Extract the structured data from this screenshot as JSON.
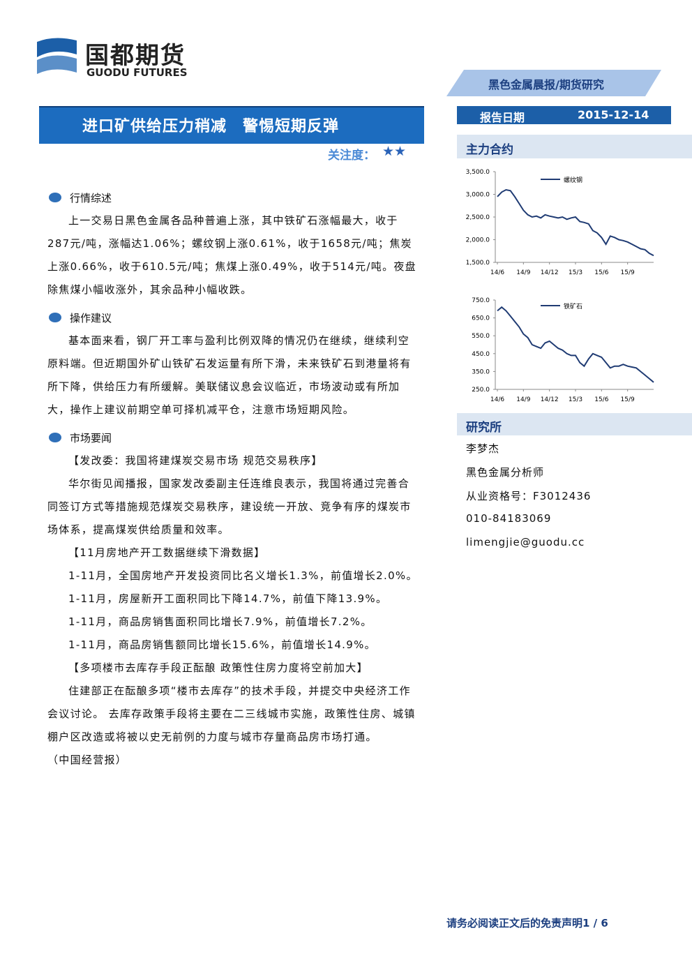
{
  "header": {
    "logo_cn": "国都期货",
    "logo_en": "GUODU FUTURES",
    "report_type": "黑色金属晨报/期货研究",
    "title": "进口矿供给压力稍减　警惕短期反弹",
    "attention_label": "关注度：",
    "stars": "★★",
    "date_label": "报告日期",
    "date": "2015-12-14"
  },
  "sections": [
    {
      "heading": "行情综述",
      "paragraphs": [
        "上一交易日黑色金属各品种普遍上涨，其中铁矿石涨幅最大，收于287元/吨，涨幅达1.06%；螺纹钢上涨0.61%，收于1658元/吨；焦炭上涨0.66%，收于610.5元/吨；焦煤上涨0.49%，收于514元/吨。夜盘除焦煤小幅收涨外，其余品种小幅收跌。"
      ]
    },
    {
      "heading": "操作建议",
      "paragraphs": [
        "基本面来看，钢厂开工率与盈利比例双降的情况仍在继续，继续利空原料端。但近期国外矿山铁矿石发运量有所下滑，未来铁矿石到港量将有所下降，供给压力有所缓解。美联储议息会议临近，市场波动或有所加大，操作上建议前期空单可择机减平仓，注意市场短期风险。"
      ]
    },
    {
      "heading": "市场要闻",
      "paragraphs": [
        "【发改委：我国将建煤炭交易市场 规范交易秩序】",
        "华尔街见闻播报，国家发改委副主任连维良表示，我国将通过完善合同签订方式等措施规范煤炭交易秩序，建设统一开放、竞争有序的煤炭市场体系，提高煤炭供给质量和效率。",
        "【11月房地产开工数据继续下滑数据】",
        "1-11月，全国房地产开发投资同比名义增长1.3%，前值增长2.0%。",
        "1-11月，房屋新开工面积同比下降14.7%，前值下降13.9%。",
        "1-11月，商品房销售面积同比增长7.9%，前值增长7.2%。",
        "1-11月，商品房销售额同比增长15.6%，前值增长14.9%。",
        "【多项楼市去库存手段正酝酿 政策性住房力度将空前加大】",
        "住建部正在酝酿多项“楼市去库存”的技术手段，并提交中央经济工作会议讨论。 去库存政策手段将主要在二三线城市实施，政策性住房、城镇棚户区改造或将被以史无前例的力度与城市存量商品房市场打通。"
      ],
      "source": "（中国经营报）"
    }
  ],
  "sidebar": {
    "main_contract_heading": "主力合约",
    "research_heading": "研究所",
    "analyst": [
      "李梦杰",
      "黑色金属分析师",
      "从业资格号：F3012436",
      "010-84183069",
      "limengjie@guodu.cc"
    ]
  },
  "footer": "请务必阅读正文后的免责声明1 / 6",
  "chart_data": [
    {
      "type": "line",
      "categories": [
        "14/6",
        null,
        null,
        null,
        null,
        null,
        "14/9",
        null,
        null,
        null,
        null,
        null,
        "14/12",
        null,
        null,
        null,
        null,
        null,
        "15/3",
        null,
        null,
        null,
        null,
        null,
        "15/6",
        null,
        null,
        null,
        null,
        null,
        "15/9",
        null,
        null,
        null,
        null,
        null,
        null
      ],
      "series": [
        {
          "name": "螺纹钢",
          "color": "#1f3b73",
          "values": [
            2950,
            3050,
            3100,
            3080,
            2950,
            2800,
            2650,
            2550,
            2500,
            2520,
            2480,
            2550,
            2520,
            2500,
            2480,
            2500,
            2450,
            2480,
            2500,
            2400,
            2380,
            2350,
            2200,
            2150,
            2050,
            1900,
            2080,
            2050,
            2000,
            1980,
            1950,
            1900,
            1850,
            1800,
            1780,
            1700,
            1650
          ]
        }
      ],
      "ylim": [
        1500,
        3500
      ],
      "yticks": [
        {
          "value": 1500,
          "label": "1,500.0"
        },
        {
          "value": 2000,
          "label": "2,000.0"
        },
        {
          "value": 2500,
          "label": "2,500.0"
        },
        {
          "value": 3000,
          "label": "3,000.0"
        },
        {
          "value": 3500,
          "label": "3,500.0"
        }
      ]
    },
    {
      "type": "line",
      "categories": [
        "14/6",
        null,
        null,
        null,
        null,
        null,
        "14/9",
        null,
        null,
        null,
        null,
        null,
        "14/12",
        null,
        null,
        null,
        null,
        null,
        "15/3",
        null,
        null,
        null,
        null,
        null,
        "15/6",
        null,
        null,
        null,
        null,
        null,
        "15/9",
        null,
        null,
        null,
        null,
        null,
        null
      ],
      "series": [
        {
          "name": "铁矿石",
          "color": "#1f3b73",
          "values": [
            690,
            710,
            690,
            660,
            630,
            600,
            560,
            540,
            500,
            490,
            480,
            510,
            520,
            500,
            480,
            470,
            450,
            440,
            440,
            400,
            380,
            420,
            450,
            440,
            430,
            400,
            370,
            380,
            380,
            390,
            380,
            375,
            370,
            350,
            330,
            310,
            290
          ]
        }
      ],
      "ylim": [
        250,
        750
      ],
      "yticks": [
        {
          "value": 250,
          "label": "250.0"
        },
        {
          "value": 350,
          "label": "350.0"
        },
        {
          "value": 450,
          "label": "450.0"
        },
        {
          "value": 550,
          "label": "550.0"
        },
        {
          "value": 650,
          "label": "650.0"
        },
        {
          "value": 750,
          "label": "750.0"
        }
      ]
    }
  ]
}
